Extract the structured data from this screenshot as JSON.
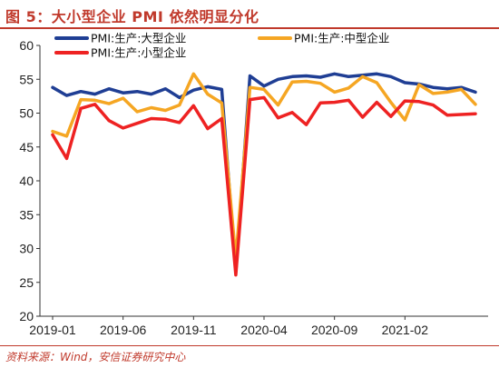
{
  "title": "图 5：大小型企业 PMI 依然明显分化",
  "source": "资料来源：Wind，安信证券研究中心",
  "chart_data": {
    "type": "line",
    "title": "",
    "xlabel": "",
    "ylabel": "",
    "ylim": [
      20,
      60
    ],
    "yticks": [
      20,
      25,
      30,
      35,
      40,
      45,
      50,
      55,
      60
    ],
    "xtick_labels": [
      "2019-01",
      "2019-06",
      "2019-11",
      "2020-04",
      "2020-09",
      "2021-02"
    ],
    "x": [
      "2019-01",
      "2019-02",
      "2019-03",
      "2019-04",
      "2019-05",
      "2019-06",
      "2019-07",
      "2019-08",
      "2019-09",
      "2019-10",
      "2019-11",
      "2019-12",
      "2020-01",
      "2020-02",
      "2020-03",
      "2020-04",
      "2020-05",
      "2020-06",
      "2020-07",
      "2020-08",
      "2020-09",
      "2020-10",
      "2020-11",
      "2020-12",
      "2021-01",
      "2021-02",
      "2021-03",
      "2021-04",
      "2021-05",
      "2021-06",
      "2021-07"
    ],
    "grid": false,
    "legend_position": "top",
    "series": [
      {
        "name": "PMI:生产:大型企业",
        "color": "#1f3e94",
        "values": [
          53.8,
          52.6,
          53.2,
          52.8,
          53.6,
          53.0,
          53.2,
          52.8,
          53.6,
          52.3,
          53.4,
          53.9,
          53.5,
          26.5,
          55.5,
          54.0,
          55.0,
          55.4,
          55.5,
          55.3,
          55.8,
          55.4,
          55.6,
          55.8,
          55.4,
          54.5,
          54.3,
          53.8,
          53.6,
          53.8,
          53.1
        ]
      },
      {
        "name": "PMI:生产:中型企业",
        "color": "#f5a623",
        "values": [
          47.3,
          46.6,
          52.0,
          51.9,
          51.4,
          52.2,
          50.2,
          50.8,
          50.4,
          51.2,
          55.8,
          52.8,
          51.5,
          28.5,
          53.8,
          53.5,
          51.2,
          54.6,
          54.7,
          54.4,
          53.1,
          53.7,
          55.4,
          54.5,
          51.6,
          49.0,
          54.2,
          52.9,
          53.1,
          53.5,
          51.3
        ]
      },
      {
        "name": "PMI:生产:小型企业",
        "color": "#ee2222",
        "values": [
          46.8,
          43.3,
          50.7,
          51.3,
          48.9,
          47.8,
          48.5,
          49.2,
          49.1,
          48.6,
          51.1,
          47.7,
          49.2,
          26.1,
          52.0,
          52.3,
          49.3,
          50.1,
          48.3,
          51.5,
          51.6,
          51.9,
          49.4,
          51.6,
          49.5,
          51.8,
          51.7,
          51.2,
          49.7,
          49.8,
          49.9
        ]
      }
    ]
  }
}
